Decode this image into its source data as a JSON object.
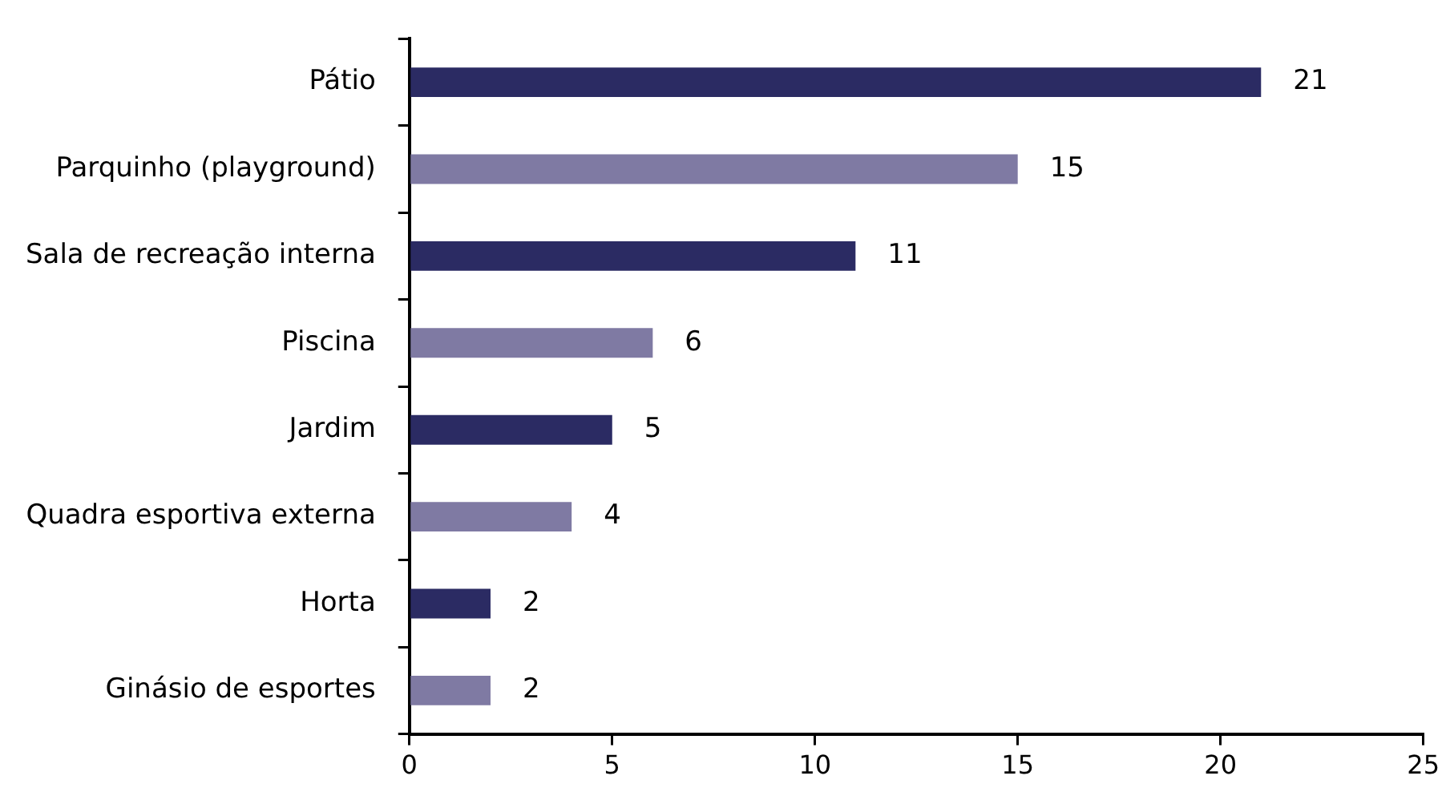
{
  "chart_data": {
    "type": "bar",
    "orientation": "horizontal",
    "categories": [
      "Pátio",
      "Parquinho (playground)",
      "Sala de recreação interna",
      "Piscina",
      "Jardim",
      "Quadra esportiva externa",
      "Horta",
      "Ginásio de esportes"
    ],
    "values": [
      21,
      15,
      11,
      6,
      5,
      4,
      2,
      2
    ],
    "colors": [
      "#2b2b63",
      "#7f7aa3",
      "#2b2b63",
      "#7f7aa3",
      "#2b2b63",
      "#7f7aa3",
      "#2b2b63",
      "#7f7aa3"
    ],
    "xlim": [
      0,
      25
    ],
    "xticks": [
      0,
      5,
      10,
      15,
      20,
      25
    ],
    "data_labels": true,
    "grid": false,
    "legend": false
  }
}
